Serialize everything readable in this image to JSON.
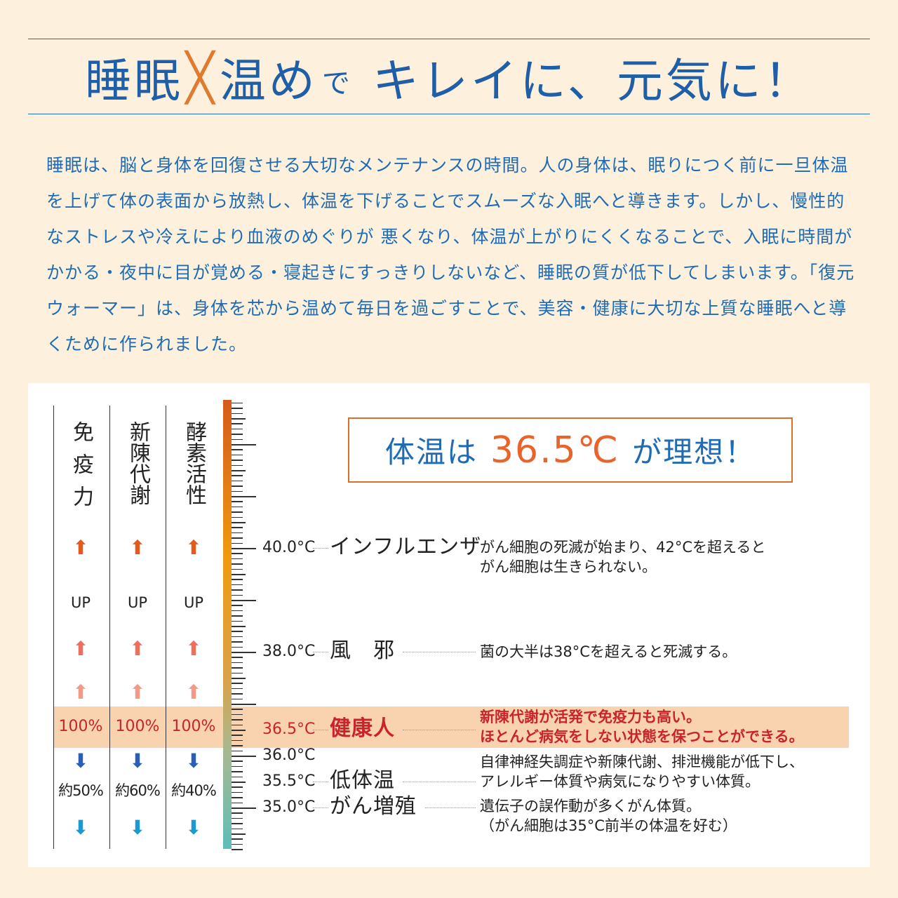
{
  "title": {
    "part1": "睡眠",
    "cross": "╳",
    "part2": "温め",
    "small": "で",
    "part3": "キレイに、元気に！"
  },
  "intro": "睡眠は、脳と身体を回復させる大切なメンテナンスの時間。人の身体は、眠りにつく前に一旦体温を上げて体の表面から放熱し、体温を下げることでスムーズな入眠へと導きます。しかし、慢性的なストレスや冷えにより血液のめぐりが 悪くなり、体温が上がりにくくなることで、入眠に時間がかかる・夜中に目が覚める・寝起きにすっきりしないなど、睡眠の質が低下してしまいます。「復元ウォーマー」は、身体を芯から温めて毎日を過ごすことで、美容・健康に大切な上質な睡眠へと導くために作られました。",
  "ideal": {
    "pre": "体温は",
    "value": "36.5℃",
    "post": "が理想！"
  },
  "columns": [
    {
      "head": "免疫力",
      "up": "UP",
      "normal": "100%",
      "low": "約50%"
    },
    {
      "head": "新陳代謝",
      "up": "UP",
      "normal": "100%",
      "low": "約60%"
    },
    {
      "head": "酵素活性",
      "up": "UP",
      "normal": "100%",
      "low": "約40%"
    }
  ],
  "scale": {
    "min": 34.2,
    "max": 42.85,
    "gradient": [
      "#d55a1c",
      "#ef9a10",
      "#5fbdb9"
    ]
  },
  "rows": [
    {
      "temp": "40.0°C",
      "value": 40.0,
      "cond": "インフルエンザ",
      "desc": [
        "がん細胞の死滅が始まり、42°Cを超えると",
        "がん細胞は生きられない。"
      ]
    },
    {
      "temp": "38.0°C",
      "value": 38.0,
      "cond": "風　邪",
      "desc": [
        "菌の大半は38°Cを超えると死滅する。"
      ]
    },
    {
      "temp": "36.5°C",
      "value": 36.5,
      "cond": "健康人",
      "desc": [
        "新陳代謝が活発で免疫力も高い。",
        "ほとんど病気をしない状態を保つことができる。"
      ],
      "highlight": true
    },
    {
      "temp": "36.0°C",
      "value": 36.0,
      "cond": "",
      "desc": []
    },
    {
      "temp": "35.5°C",
      "value": 35.5,
      "cond": "低体温",
      "desc": [
        "自律神経失調症や新陳代謝、排泄機能が低下し、",
        "アレルギー体質や病気になりやすい体質。"
      ]
    },
    {
      "temp": "35.0°C",
      "value": 35.0,
      "cond": "がん増殖",
      "desc": [
        "遺伝子の誤作動が多くがん体質。",
        "（がん細胞は35°C前半の体温を好む）"
      ]
    }
  ],
  "colors": {
    "blue": "#1f5fa8",
    "orange": "#e8642a",
    "red": "#c8242c",
    "band": "#f9d3b0",
    "arrowUp": [
      "#e55a1a",
      "#ef6f5f",
      "#f29a86"
    ],
    "arrowDown": [
      "#2a5fb5",
      "#1a9ad0"
    ]
  }
}
